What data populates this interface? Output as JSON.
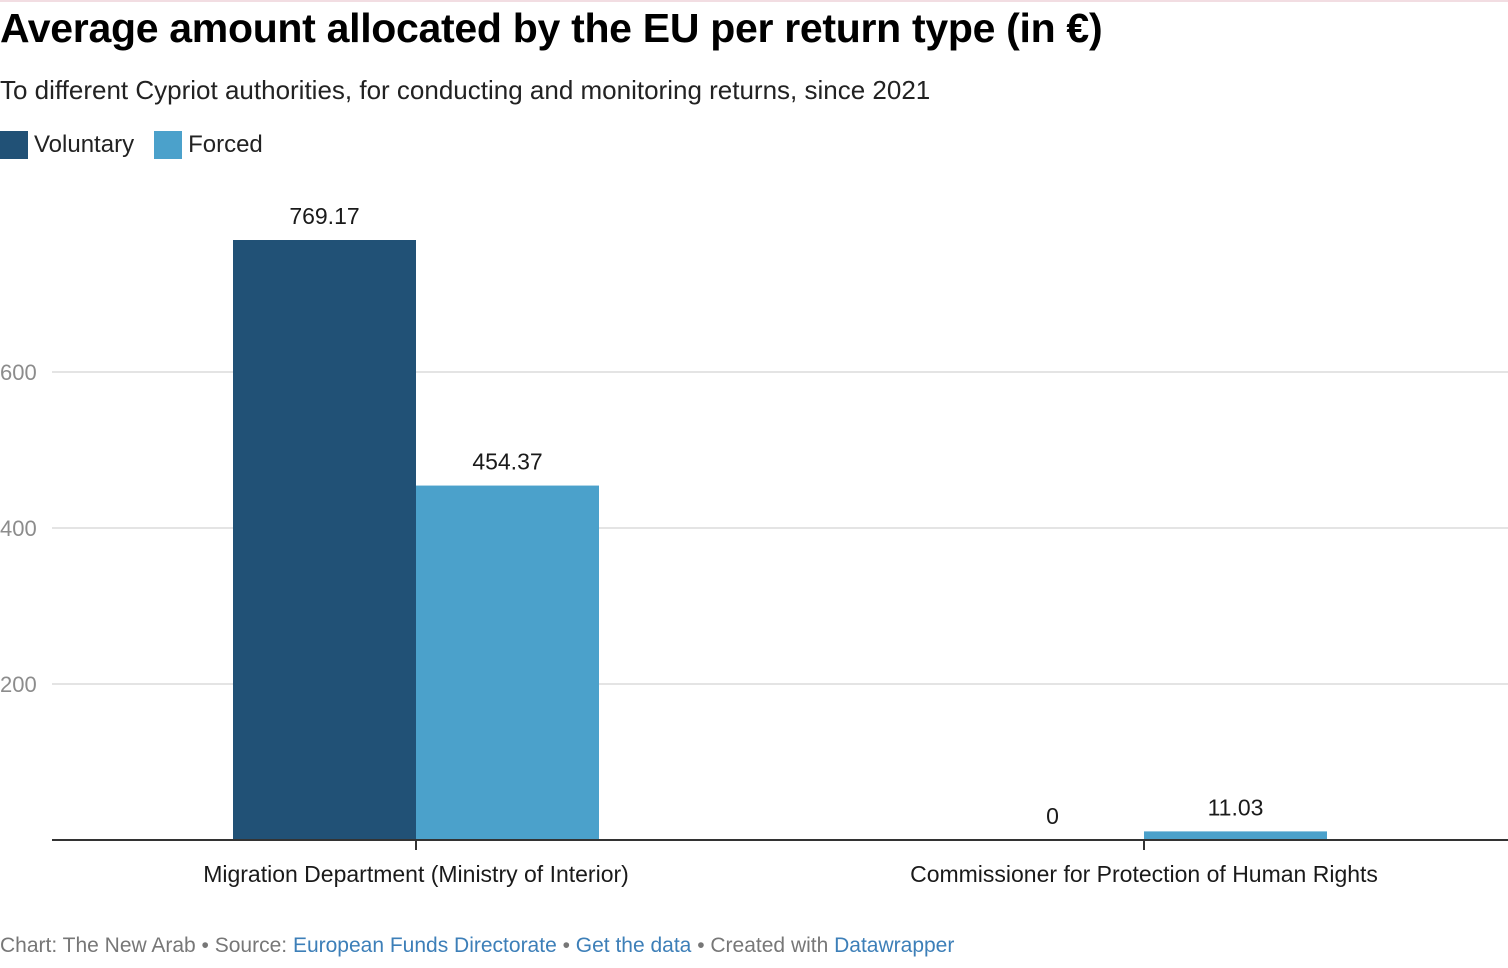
{
  "chart_data": {
    "type": "bar",
    "title": "Average amount allocated by the EU per return type (in €)",
    "subtitle": "To different Cypriot authorities, for conducting and monitoring returns, since 2021",
    "categories": [
      "Migration Department (Ministry of Interior)",
      "Commissioner for Protection of Human Rights"
    ],
    "series": [
      {
        "name": "Voluntary",
        "color": "#215176",
        "values": [
          769.17,
          0
        ],
        "labels": [
          "769.17",
          "0"
        ]
      },
      {
        "name": "Forced",
        "color": "#4ba1cb",
        "values": [
          454.37,
          11.03
        ],
        "labels": [
          "454.37",
          "11.03"
        ]
      }
    ],
    "yticks": [
      200,
      400,
      600
    ],
    "ylim": [
      0,
      769.17
    ],
    "grid": true,
    "legend": "top-left",
    "xlabel": "",
    "ylabel": ""
  },
  "footer": {
    "prefix": "Chart: The New Arab • Source: ",
    "source": "European Funds Directorate",
    "sep1": " • ",
    "get_data": "Get the data",
    "sep2": " • Created with ",
    "tool": "Datawrapper"
  }
}
